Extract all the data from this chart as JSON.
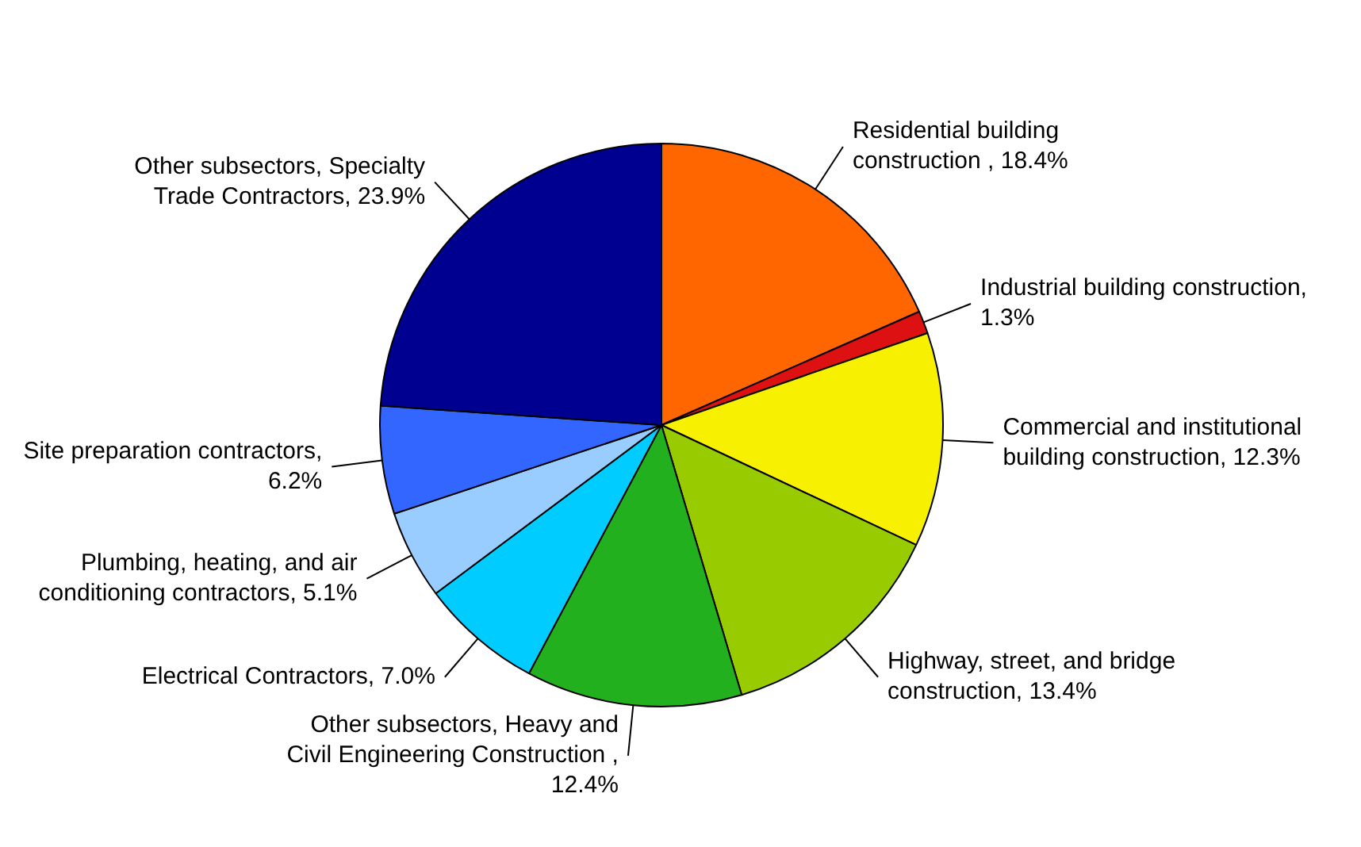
{
  "chart_data": {
    "type": "pie",
    "categories": [
      "Residential building construction , 18.4%",
      "Industrial building construction, 1.3%",
      "Commercial and institutional building construction, 12.3%",
      "Highway, street, and bridge construction, 13.4%",
      "Other subsectors, Heavy and Civil Engineering Construction , 12.4%",
      "Electrical Contractors, 7.0%",
      "Plumbing, heating, and air conditioning contractors, 5.1%",
      "Site preparation contractors, 6.2%",
      "Other subsectors, Specialty Trade Contractors, 23.9%"
    ],
    "values": [
      18.4,
      1.3,
      12.3,
      13.4,
      12.4,
      7.0,
      5.1,
      6.2,
      23.9
    ],
    "colors": [
      "#ff6600",
      "#dd1111",
      "#f7f000",
      "#99cc00",
      "#22b01e",
      "#00ccff",
      "#99ccff",
      "#3366ff",
      "#000090"
    ],
    "legend": false
  }
}
